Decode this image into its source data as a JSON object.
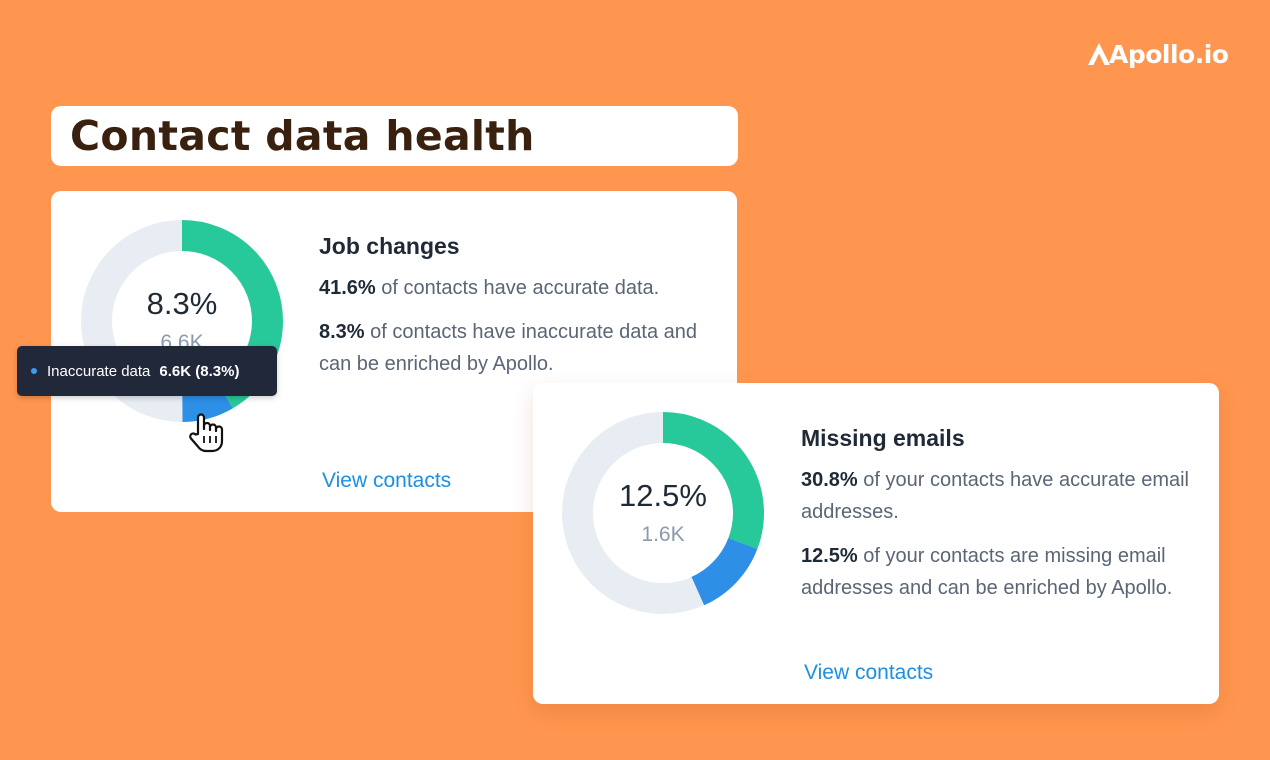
{
  "logo": {
    "text": "Apollo.io"
  },
  "page_title": "Contact data health",
  "colors": {
    "background": "#FF964F",
    "accurate": "#27C899",
    "inaccurate": "#2E8FE6",
    "remaining": "#E8EDF4",
    "link": "#1C8FE0"
  },
  "cards": [
    {
      "title": "Job changes",
      "donut": {
        "percent": "8.3%",
        "count": "6.6K",
        "segments": [
          {
            "name": "accurate",
            "value": 41.6
          },
          {
            "name": "inaccurate",
            "value": 8.3
          }
        ]
      },
      "line1": {
        "bold": "41.6%",
        "text": " of contacts have accurate data."
      },
      "line2": {
        "bold": "8.3%",
        "text": " of contacts have inaccurate data and can be enriched by Apollo."
      },
      "link": "View contacts"
    },
    {
      "title": "Missing emails",
      "donut": {
        "percent": "12.5%",
        "count": "1.6K",
        "segments": [
          {
            "name": "accurate",
            "value": 30.8
          },
          {
            "name": "inaccurate",
            "value": 12.5
          }
        ]
      },
      "line1": {
        "bold": "30.8%",
        "text": " of your contacts have accurate email addresses."
      },
      "line2": {
        "bold": "12.5%",
        "text": " of your contacts are missing email addresses and can be enriched by Apollo."
      },
      "link": "View contacts"
    }
  ],
  "tooltip": {
    "label": "Inaccurate data",
    "value": "6.6K (8.3%)"
  },
  "icons": {
    "cursor": "hand-pointer-icon",
    "logo": "apollo-logo-icon"
  }
}
